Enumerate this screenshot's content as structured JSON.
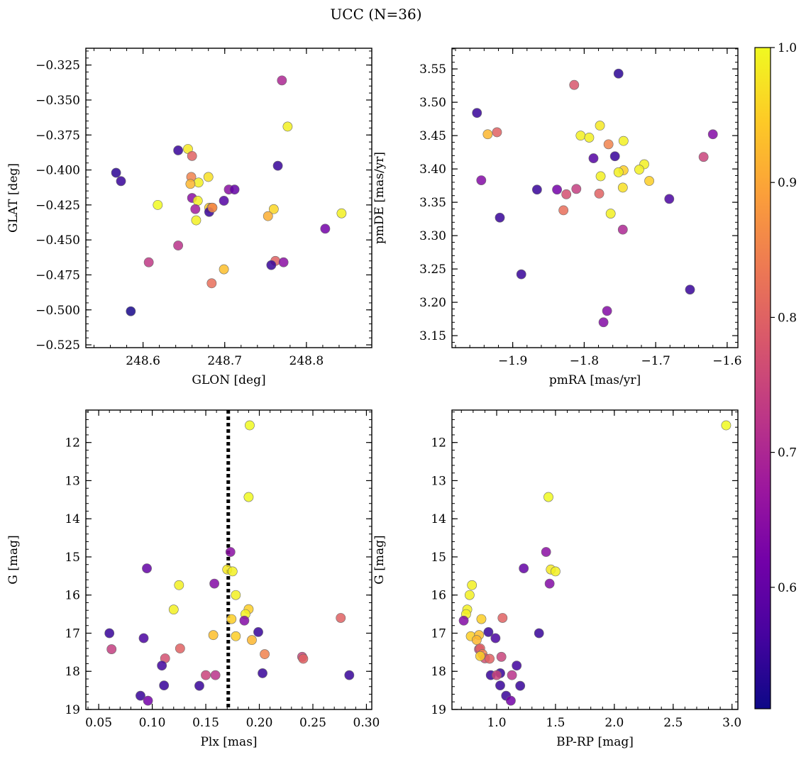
{
  "figure": {
    "title": "UCC (N=36)"
  },
  "colorbar": {
    "min": 0.51,
    "max": 1.0,
    "ticks": [
      0.6,
      0.7,
      0.8,
      0.9,
      1.0
    ],
    "tick_labels": [
      "0.6",
      "0.7",
      "0.8",
      "0.9",
      "1.0"
    ],
    "colormap": "plasma",
    "stops": [
      "#0d0887",
      "#46039f",
      "#7201a8",
      "#9c179e",
      "#bd3786",
      "#d8576b",
      "#ed7953",
      "#fb9f3a",
      "#fdca26",
      "#f0f921"
    ]
  },
  "chart_data": [
    {
      "id": "glon-glat",
      "type": "scatter",
      "xlabel": "GLON [deg]",
      "ylabel": "GLAT [deg]",
      "xlim": [
        248.53,
        248.88
      ],
      "ylim": [
        -0.527,
        -0.313
      ],
      "y_inverted": false,
      "xticks": [
        248.6,
        248.7,
        248.8
      ],
      "xtick_labels": [
        "248.6",
        "248.7",
        "248.8"
      ],
      "yticks": [
        -0.325,
        -0.35,
        -0.375,
        -0.4,
        -0.425,
        -0.45,
        -0.475,
        -0.5,
        -0.525
      ],
      "ytick_labels": [
        "−0.325",
        "−0.350",
        "−0.375",
        "−0.400",
        "−0.425",
        "−0.450",
        "−0.475",
        "−0.500",
        "−0.525"
      ],
      "x_minor": 0.02,
      "y_minor": 0.005,
      "points": [
        {
          "x": 248.77,
          "y": -0.336,
          "c": 0.7
        },
        {
          "x": 248.777,
          "y": -0.369,
          "c": 0.99
        },
        {
          "x": 248.655,
          "y": -0.385,
          "c": 0.98
        },
        {
          "x": 248.643,
          "y": -0.386,
          "c": 0.55
        },
        {
          "x": 248.66,
          "y": -0.39,
          "c": 0.8
        },
        {
          "x": 248.765,
          "y": -0.397,
          "c": 0.55
        },
        {
          "x": 248.567,
          "y": -0.402,
          "c": 0.54
        },
        {
          "x": 248.68,
          "y": -0.405,
          "c": 0.97
        },
        {
          "x": 248.659,
          "y": -0.405,
          "c": 0.85
        },
        {
          "x": 248.573,
          "y": -0.408,
          "c": 0.55
        },
        {
          "x": 248.668,
          "y": -0.409,
          "c": 0.99
        },
        {
          "x": 248.658,
          "y": -0.41,
          "c": 0.92
        },
        {
          "x": 248.705,
          "y": -0.414,
          "c": 0.65
        },
        {
          "x": 248.712,
          "y": -0.414,
          "c": 0.6
        },
        {
          "x": 248.66,
          "y": -0.42,
          "c": 0.65
        },
        {
          "x": 248.699,
          "y": -0.422,
          "c": 0.58
        },
        {
          "x": 248.667,
          "y": -0.422,
          "c": 0.99
        },
        {
          "x": 248.618,
          "y": -0.425,
          "c": 1.0
        },
        {
          "x": 248.681,
          "y": -0.427,
          "c": 0.95
        },
        {
          "x": 248.684,
          "y": -0.427,
          "c": 0.88
        },
        {
          "x": 248.664,
          "y": -0.428,
          "c": 0.68
        },
        {
          "x": 248.76,
          "y": -0.428,
          "c": 0.96
        },
        {
          "x": 248.681,
          "y": -0.43,
          "c": 0.55
        },
        {
          "x": 248.843,
          "y": -0.431,
          "c": 0.99
        },
        {
          "x": 248.753,
          "y": -0.433,
          "c": 0.91
        },
        {
          "x": 248.665,
          "y": -0.436,
          "c": 0.99
        },
        {
          "x": 248.823,
          "y": -0.442,
          "c": 0.62
        },
        {
          "x": 248.643,
          "y": -0.454,
          "c": 0.72
        },
        {
          "x": 248.607,
          "y": -0.466,
          "c": 0.73
        },
        {
          "x": 248.762,
          "y": -0.465,
          "c": 0.8
        },
        {
          "x": 248.772,
          "y": -0.466,
          "c": 0.65
        },
        {
          "x": 248.757,
          "y": -0.468,
          "c": 0.55
        },
        {
          "x": 248.699,
          "y": -0.471,
          "c": 0.93
        },
        {
          "x": 248.684,
          "y": -0.481,
          "c": 0.82
        },
        {
          "x": 248.585,
          "y": -0.501,
          "c": 0.52
        },
        {
          "x": 248.685,
          "y": -0.427,
          "c": 0.86
        }
      ]
    },
    {
      "id": "pmra-pmde",
      "type": "scatter",
      "xlabel": "pmRA [mas/yr]",
      "ylabel": "pmDE [mas/yr]",
      "xlim": [
        -1.985,
        -1.585
      ],
      "ylim": [
        3.132,
        3.581
      ],
      "y_inverted": false,
      "xticks": [
        -1.9,
        -1.8,
        -1.7,
        -1.6
      ],
      "xtick_labels": [
        "−1.9",
        "−1.8",
        "−1.7",
        "−1.6"
      ],
      "yticks": [
        3.15,
        3.2,
        3.25,
        3.3,
        3.35,
        3.4,
        3.45,
        3.5,
        3.55
      ],
      "ytick_labels": [
        "3.15",
        "3.20",
        "3.25",
        "3.30",
        "3.35",
        "3.40",
        "3.45",
        "3.50",
        "3.55"
      ],
      "x_minor": 0.02,
      "y_minor": 0.01,
      "points": [
        {
          "x": -1.752,
          "y": 3.543,
          "c": 0.54
        },
        {
          "x": -1.814,
          "y": 3.526,
          "c": 0.78
        },
        {
          "x": -1.95,
          "y": 3.484,
          "c": 0.55
        },
        {
          "x": -1.778,
          "y": 3.465,
          "c": 0.98
        },
        {
          "x": -1.922,
          "y": 3.455,
          "c": 0.8
        },
        {
          "x": -1.935,
          "y": 3.452,
          "c": 0.92
        },
        {
          "x": -1.62,
          "y": 3.452,
          "c": 0.64
        },
        {
          "x": -1.805,
          "y": 3.45,
          "c": 0.99
        },
        {
          "x": -1.793,
          "y": 3.447,
          "c": 0.99
        },
        {
          "x": -1.745,
          "y": 3.442,
          "c": 0.99
        },
        {
          "x": -1.766,
          "y": 3.437,
          "c": 0.85
        },
        {
          "x": -1.757,
          "y": 3.419,
          "c": 0.55
        },
        {
          "x": -1.633,
          "y": 3.418,
          "c": 0.75
        },
        {
          "x": -1.787,
          "y": 3.416,
          "c": 0.58
        },
        {
          "x": -1.716,
          "y": 3.407,
          "c": 0.99
        },
        {
          "x": -1.723,
          "y": 3.399,
          "c": 0.99
        },
        {
          "x": -1.745,
          "y": 3.398,
          "c": 0.95
        },
        {
          "x": -1.752,
          "y": 3.395,
          "c": 0.99
        },
        {
          "x": -1.777,
          "y": 3.389,
          "c": 0.99
        },
        {
          "x": -1.944,
          "y": 3.383,
          "c": 0.64
        },
        {
          "x": -1.709,
          "y": 3.382,
          "c": 0.95
        },
        {
          "x": -1.746,
          "y": 3.372,
          "c": 0.97
        },
        {
          "x": -1.866,
          "y": 3.369,
          "c": 0.55
        },
        {
          "x": -1.838,
          "y": 3.369,
          "c": 0.62
        },
        {
          "x": -1.811,
          "y": 3.37,
          "c": 0.74
        },
        {
          "x": -1.779,
          "y": 3.363,
          "c": 0.8
        },
        {
          "x": -1.825,
          "y": 3.362,
          "c": 0.77
        },
        {
          "x": -1.681,
          "y": 3.355,
          "c": 0.57
        },
        {
          "x": -1.829,
          "y": 3.338,
          "c": 0.82
        },
        {
          "x": -1.763,
          "y": 3.333,
          "c": 0.99
        },
        {
          "x": -1.918,
          "y": 3.327,
          "c": 0.55
        },
        {
          "x": -1.746,
          "y": 3.309,
          "c": 0.7
        },
        {
          "x": -1.888,
          "y": 3.242,
          "c": 0.55
        },
        {
          "x": -1.652,
          "y": 3.219,
          "c": 0.55
        },
        {
          "x": -1.768,
          "y": 3.187,
          "c": 0.64
        },
        {
          "x": -1.773,
          "y": 3.17,
          "c": 0.64
        }
      ]
    },
    {
      "id": "plx-g",
      "type": "scatter",
      "xlabel": "Plx [mas]",
      "ylabel": "G [mag]",
      "xlim": [
        0.038,
        0.305
      ],
      "ylim": [
        11.15,
        19.0
      ],
      "y_inverted": true,
      "xticks": [
        0.05,
        0.1,
        0.15,
        0.2,
        0.25,
        0.3
      ],
      "xtick_labels": [
        "0.05",
        "0.10",
        "0.15",
        "0.20",
        "0.25",
        "0.30"
      ],
      "yticks": [
        12,
        13,
        14,
        15,
        16,
        17,
        18,
        19
      ],
      "ytick_labels": [
        "12",
        "13",
        "14",
        "15",
        "16",
        "17",
        "18",
        "19"
      ],
      "x_minor": 0.01,
      "y_minor": 0.2,
      "vline": 0.171,
      "points": [
        {
          "x": 0.191,
          "y": 11.55,
          "c": 1.0
        },
        {
          "x": 0.19,
          "y": 13.43,
          "c": 1.0
        },
        {
          "x": 0.173,
          "y": 14.87,
          "c": 0.65
        },
        {
          "x": 0.095,
          "y": 15.3,
          "c": 0.6
        },
        {
          "x": 0.17,
          "y": 15.33,
          "c": 0.98
        },
        {
          "x": 0.175,
          "y": 15.38,
          "c": 0.99
        },
        {
          "x": 0.158,
          "y": 15.7,
          "c": 0.64
        },
        {
          "x": 0.125,
          "y": 15.74,
          "c": 0.99
        },
        {
          "x": 0.178,
          "y": 16.0,
          "c": 0.99
        },
        {
          "x": 0.12,
          "y": 16.38,
          "c": 0.99
        },
        {
          "x": 0.19,
          "y": 16.37,
          "c": 0.95
        },
        {
          "x": 0.187,
          "y": 16.5,
          "c": 0.99
        },
        {
          "x": 0.186,
          "y": 16.67,
          "c": 0.64
        },
        {
          "x": 0.174,
          "y": 16.63,
          "c": 0.95
        },
        {
          "x": 0.276,
          "y": 16.6,
          "c": 0.8
        },
        {
          "x": 0.06,
          "y": 17.0,
          "c": 0.55
        },
        {
          "x": 0.199,
          "y": 16.97,
          "c": 0.55
        },
        {
          "x": 0.157,
          "y": 17.05,
          "c": 0.93
        },
        {
          "x": 0.178,
          "y": 17.08,
          "c": 0.95
        },
        {
          "x": 0.092,
          "y": 17.13,
          "c": 0.57
        },
        {
          "x": 0.193,
          "y": 17.18,
          "c": 0.92
        },
        {
          "x": 0.062,
          "y": 17.42,
          "c": 0.74
        },
        {
          "x": 0.126,
          "y": 17.4,
          "c": 0.8
        },
        {
          "x": 0.205,
          "y": 17.55,
          "c": 0.85
        },
        {
          "x": 0.112,
          "y": 17.66,
          "c": 0.77
        },
        {
          "x": 0.24,
          "y": 17.62,
          "c": 0.75
        },
        {
          "x": 0.241,
          "y": 17.67,
          "c": 0.8
        },
        {
          "x": 0.109,
          "y": 17.85,
          "c": 0.56
        },
        {
          "x": 0.203,
          "y": 18.05,
          "c": 0.55
        },
        {
          "x": 0.15,
          "y": 18.1,
          "c": 0.75
        },
        {
          "x": 0.159,
          "y": 18.1,
          "c": 0.72
        },
        {
          "x": 0.284,
          "y": 18.1,
          "c": 0.55
        },
        {
          "x": 0.111,
          "y": 18.37,
          "c": 0.55
        },
        {
          "x": 0.144,
          "y": 18.38,
          "c": 0.55
        },
        {
          "x": 0.089,
          "y": 18.64,
          "c": 0.55
        },
        {
          "x": 0.096,
          "y": 18.77,
          "c": 0.62
        }
      ]
    },
    {
      "id": "bprp-g",
      "type": "scatter",
      "xlabel": "BP-RP [mag]",
      "ylabel": "G [mag]",
      "xlim": [
        0.62,
        3.05
      ],
      "ylim": [
        11.15,
        19.0
      ],
      "y_inverted": true,
      "xticks": [
        1.0,
        1.5,
        2.0,
        2.5,
        3.0
      ],
      "xtick_labels": [
        "1.0",
        "1.5",
        "2.0",
        "2.5",
        "3.0"
      ],
      "yticks": [
        12,
        13,
        14,
        15,
        16,
        17,
        18,
        19
      ],
      "ytick_labels": [
        "12",
        "13",
        "14",
        "15",
        "16",
        "17",
        "18",
        "19"
      ],
      "x_minor": 0.1,
      "y_minor": 0.2,
      "points": [
        {
          "x": 2.95,
          "y": 11.55,
          "c": 1.0
        },
        {
          "x": 1.44,
          "y": 13.43,
          "c": 1.0
        },
        {
          "x": 1.42,
          "y": 14.87,
          "c": 0.65
        },
        {
          "x": 1.23,
          "y": 15.3,
          "c": 0.6
        },
        {
          "x": 1.46,
          "y": 15.33,
          "c": 0.98
        },
        {
          "x": 1.5,
          "y": 15.38,
          "c": 0.99
        },
        {
          "x": 1.45,
          "y": 15.7,
          "c": 0.64
        },
        {
          "x": 0.79,
          "y": 15.74,
          "c": 0.99
        },
        {
          "x": 0.77,
          "y": 16.0,
          "c": 0.99
        },
        {
          "x": 0.75,
          "y": 16.38,
          "c": 0.99
        },
        {
          "x": 0.74,
          "y": 16.5,
          "c": 0.99
        },
        {
          "x": 0.72,
          "y": 16.67,
          "c": 0.64
        },
        {
          "x": 0.87,
          "y": 16.63,
          "c": 0.95
        },
        {
          "x": 1.05,
          "y": 16.6,
          "c": 0.8
        },
        {
          "x": 0.93,
          "y": 16.97,
          "c": 0.55
        },
        {
          "x": 1.36,
          "y": 17.0,
          "c": 0.55
        },
        {
          "x": 0.78,
          "y": 17.08,
          "c": 0.95
        },
        {
          "x": 0.85,
          "y": 17.05,
          "c": 0.93
        },
        {
          "x": 0.99,
          "y": 17.13,
          "c": 0.57
        },
        {
          "x": 0.83,
          "y": 17.18,
          "c": 0.92
        },
        {
          "x": 0.85,
          "y": 17.42,
          "c": 0.74
        },
        {
          "x": 0.86,
          "y": 17.4,
          "c": 0.8
        },
        {
          "x": 0.88,
          "y": 17.55,
          "c": 0.85
        },
        {
          "x": 0.9,
          "y": 17.66,
          "c": 0.77
        },
        {
          "x": 0.94,
          "y": 17.67,
          "c": 0.8
        },
        {
          "x": 1.04,
          "y": 17.62,
          "c": 0.75
        },
        {
          "x": 1.17,
          "y": 17.85,
          "c": 0.56
        },
        {
          "x": 0.95,
          "y": 18.1,
          "c": 0.55
        },
        {
          "x": 1.03,
          "y": 18.05,
          "c": 0.55
        },
        {
          "x": 1.0,
          "y": 18.1,
          "c": 0.75
        },
        {
          "x": 1.13,
          "y": 18.1,
          "c": 0.72
        },
        {
          "x": 1.03,
          "y": 18.37,
          "c": 0.55
        },
        {
          "x": 1.2,
          "y": 18.38,
          "c": 0.55
        },
        {
          "x": 1.08,
          "y": 18.64,
          "c": 0.55
        },
        {
          "x": 1.12,
          "y": 18.77,
          "c": 0.62
        },
        {
          "x": 0.86,
          "y": 17.6,
          "c": 0.95
        }
      ]
    }
  ]
}
